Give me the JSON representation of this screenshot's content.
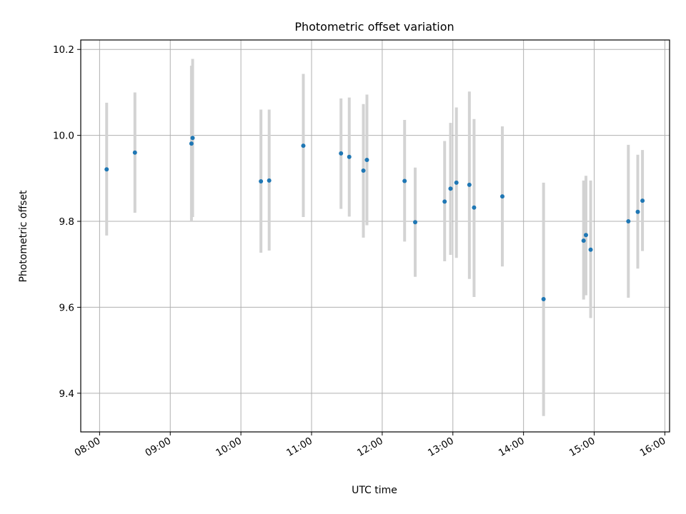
{
  "chart_data": {
    "type": "scatter",
    "title": "Photometric offset variation",
    "xlabel": "UTC time",
    "ylabel": "Photometric offset",
    "x_tick_labels": [
      "08:00",
      "09:00",
      "10:00",
      "11:00",
      "12:00",
      "13:00",
      "14:00",
      "15:00",
      "16:00"
    ],
    "y_tick_labels": [
      "9.4",
      "9.6",
      "9.8",
      "10.0",
      "10.2"
    ],
    "y_ticks": [
      9.4,
      9.6,
      9.8,
      10.0,
      10.2
    ],
    "xlim": [
      "07:44",
      "16:04"
    ],
    "ylim": [
      9.31,
      10.222
    ],
    "grid": true,
    "colors": {
      "marker": "#1f77b4",
      "errorbar": "#d3d3d3",
      "grid": "#b0b0b0"
    },
    "points": [
      {
        "x": "08:06",
        "y": 9.921,
        "ylo": 9.767,
        "yhi": 10.076
      },
      {
        "x": "08:30",
        "y": 9.96,
        "ylo": 9.82,
        "yhi": 10.1
      },
      {
        "x": "09:18",
        "y": 9.981,
        "ylo": 9.8,
        "yhi": 10.162
      },
      {
        "x": "09:19",
        "y": 9.994,
        "ylo": 9.81,
        "yhi": 10.178
      },
      {
        "x": "10:17",
        "y": 9.893,
        "ylo": 9.727,
        "yhi": 10.06
      },
      {
        "x": "10:24",
        "y": 9.895,
        "ylo": 9.732,
        "yhi": 10.06
      },
      {
        "x": "10:53",
        "y": 9.976,
        "ylo": 9.81,
        "yhi": 10.143
      },
      {
        "x": "11:25",
        "y": 9.958,
        "ylo": 9.829,
        "yhi": 10.086
      },
      {
        "x": "11:32",
        "y": 9.95,
        "ylo": 9.811,
        "yhi": 10.088
      },
      {
        "x": "11:44",
        "y": 9.918,
        "ylo": 9.762,
        "yhi": 10.073
      },
      {
        "x": "11:47",
        "y": 9.943,
        "ylo": 9.791,
        "yhi": 10.095
      },
      {
        "x": "12:19",
        "y": 9.894,
        "ylo": 9.753,
        "yhi": 10.036
      },
      {
        "x": "12:28",
        "y": 9.798,
        "ylo": 9.671,
        "yhi": 9.925
      },
      {
        "x": "12:53",
        "y": 9.846,
        "ylo": 9.707,
        "yhi": 9.987
      },
      {
        "x": "12:58",
        "y": 9.876,
        "ylo": 9.722,
        "yhi": 10.029
      },
      {
        "x": "13:03",
        "y": 9.89,
        "ylo": 9.715,
        "yhi": 10.065
      },
      {
        "x": "13:14",
        "y": 9.885,
        "ylo": 9.666,
        "yhi": 10.102
      },
      {
        "x": "13:18",
        "y": 9.832,
        "ylo": 9.624,
        "yhi": 10.038
      },
      {
        "x": "13:42",
        "y": 9.858,
        "ylo": 9.695,
        "yhi": 10.021
      },
      {
        "x": "14:17",
        "y": 9.619,
        "ylo": 9.347,
        "yhi": 9.89
      },
      {
        "x": "14:51",
        "y": 9.755,
        "ylo": 9.618,
        "yhi": 9.895
      },
      {
        "x": "14:53",
        "y": 9.768,
        "ylo": 9.628,
        "yhi": 9.906
      },
      {
        "x": "14:57",
        "y": 9.734,
        "ylo": 9.575,
        "yhi": 9.895
      },
      {
        "x": "15:29",
        "y": 9.8,
        "ylo": 9.622,
        "yhi": 9.978
      },
      {
        "x": "15:37",
        "y": 9.822,
        "ylo": 9.69,
        "yhi": 9.955
      },
      {
        "x": "15:41",
        "y": 9.848,
        "ylo": 9.731,
        "yhi": 9.966
      }
    ]
  }
}
